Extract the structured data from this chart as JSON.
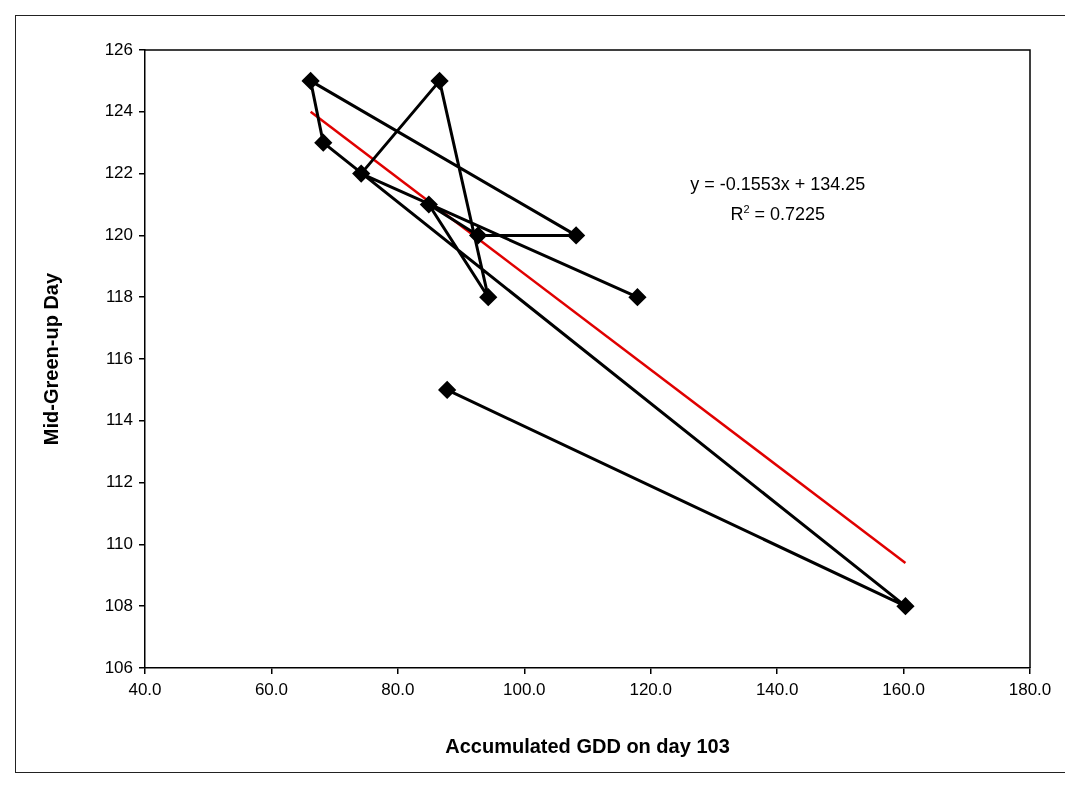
{
  "chart_data": {
    "type": "scatter",
    "xlabel": "Accumulated GDD on day 103",
    "ylabel": "Mid-Green-up Day",
    "xlim": [
      40,
      180
    ],
    "xticks": [
      {
        "value": 40,
        "label": "40.0"
      },
      {
        "value": 60,
        "label": "60.0"
      },
      {
        "value": 80,
        "label": "80.0"
      },
      {
        "value": 100,
        "label": "100.0"
      },
      {
        "value": 120,
        "label": "120.0"
      },
      {
        "value": 140,
        "label": "140.0"
      },
      {
        "value": 160,
        "label": "160.0"
      },
      {
        "value": 180,
        "label": "180.0"
      }
    ],
    "ylim": [
      106,
      126
    ],
    "yticks": [
      106,
      108,
      110,
      112,
      114,
      116,
      118,
      120,
      122,
      124,
      126
    ],
    "grid": false,
    "legend": false,
    "marker": "diamond",
    "series": [
      {
        "type": "line",
        "color": "#000000",
        "x": [
          117.9,
          74.2,
          86.6,
          94.3,
          84.9,
          92.7,
          108.2,
          66.2,
          68.2,
          160.3,
          87.8
        ],
        "values": [
          118,
          122,
          125,
          118,
          121,
          120,
          120,
          125,
          123,
          108,
          115
        ]
      },
      {
        "type": "line",
        "color": "#e00000",
        "marker": "none",
        "x": [
          66.2,
          160.3
        ],
        "values": [
          124.0,
          109.4
        ]
      }
    ],
    "annotations": [
      "y = -0.1553x + 134.25",
      "R$^{2}$ = 0.7225"
    ]
  }
}
